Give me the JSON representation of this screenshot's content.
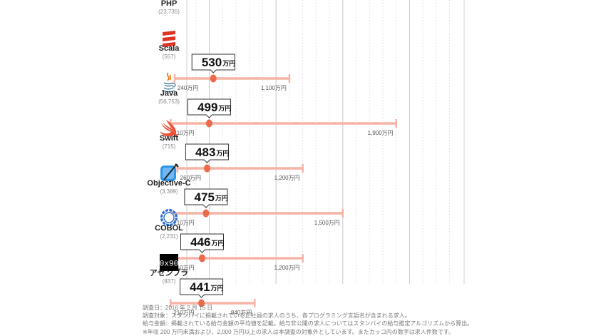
{
  "chart_data": {
    "type": "range-dot",
    "unit": "万円",
    "categories": [
      {
        "name": "PHP",
        "count": "(23,735)",
        "icon": "php-icon",
        "avg": 530,
        "min": null,
        "max": null,
        "avg_label": "530",
        "min_label": "",
        "max_label": ""
      },
      {
        "name": "Scala",
        "count": "(557)",
        "icon": "scala-icon",
        "avg": 530,
        "min": 240,
        "max": 1100,
        "avg_label": "530",
        "min_label": "240万円",
        "max_label": "1,100万円"
      },
      {
        "name": "Java",
        "count": "(56,753)",
        "icon": "java-icon",
        "avg": 499,
        "min": 210,
        "max": 1900,
        "avg_label": "499",
        "min_label": "210万円",
        "max_label": "1,900万円"
      },
      {
        "name": "Swift",
        "count": "(715)",
        "icon": "swift-icon",
        "avg": 483,
        "min": 260,
        "max": 1200,
        "avg_label": "483",
        "min_label": "260万円",
        "max_label": "1,200万円"
      },
      {
        "name": "Objective-C",
        "count": "(3,389)",
        "icon": "objective-c-icon",
        "avg": 475,
        "min": 210,
        "max": 1500,
        "avg_label": "475",
        "min_label": "210万円",
        "max_label": "1,500万円"
      },
      {
        "name": "COBOL",
        "count": "(2,231)",
        "icon": "cobol-icon",
        "avg": 446,
        "min": 210,
        "max": 1200,
        "avg_label": "446",
        "min_label": "210万円",
        "max_label": "1,200万円"
      },
      {
        "name": "アセンブラ",
        "count": "(837)",
        "icon": "assembler-icon",
        "avg": 441,
        "min": 210,
        "max": 840,
        "avg_label": "441",
        "min_label": "210万円",
        "max_label": "840万円"
      }
    ],
    "avg_unit_label": "万円",
    "assembler_icon_text": "0x90",
    "grid": true
  },
  "notes": [
    "調査日：2016 年 2 月 15 日",
    "調査対象：スタンバイに掲載されている正社員の求人のうち、各プログラミング言語名が含まれる求人。",
    "給与金額：掲載されている給与金額の平均値を記載。給与非公開の求人についてはスタンバイの給与推定アルゴリズムから算出。",
    "※年収 200 万円未満および、2,000 万円以上の求人は本調査の対象外としています。またカッコ内の数字は求人件数です。"
  ],
  "colors": {
    "range": "#f6b3a6",
    "dot": "#ec6a4c",
    "grid": "#d6d6d6",
    "scala": "#de3423",
    "java_blue": "#5382a1",
    "java_orange": "#e76f00",
    "swift": "#f05138",
    "objc_blue": "#2f95e8",
    "cobol": "#2b6fd6"
  }
}
